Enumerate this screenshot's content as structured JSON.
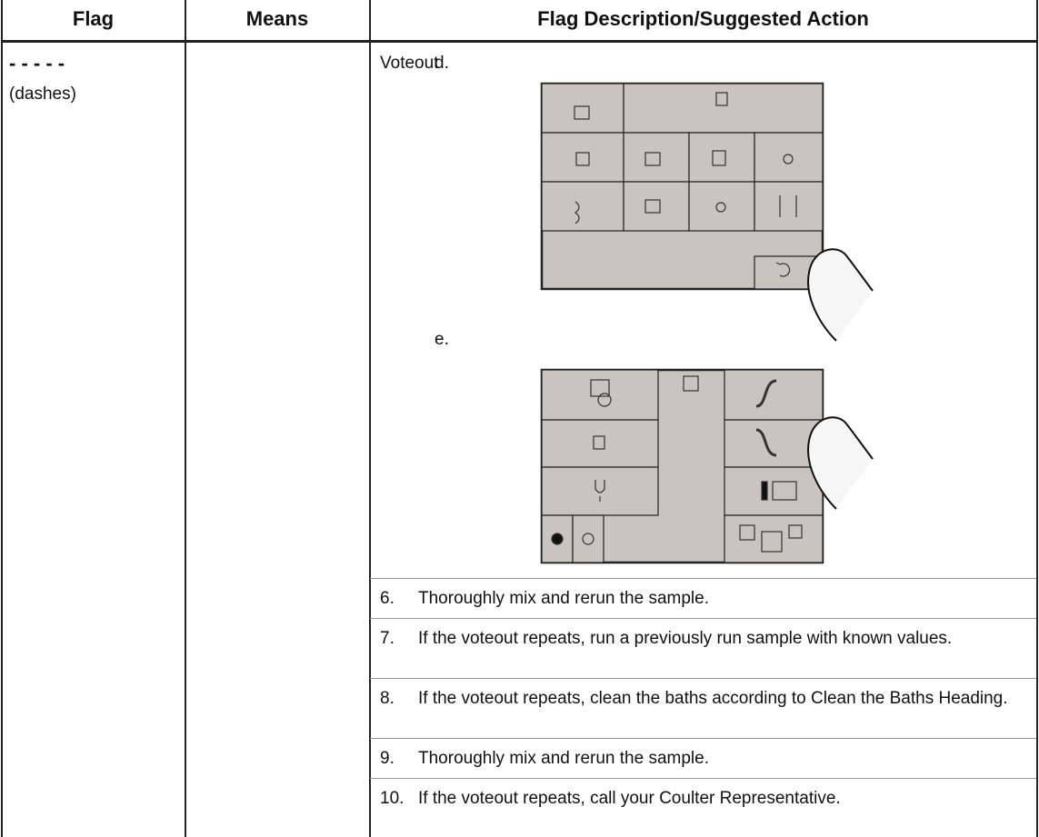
{
  "header": {
    "columns": [
      "Flag",
      "Means",
      "Flag Description/Suggested Action"
    ]
  },
  "row": {
    "flag": "- - - - -",
    "flag_note": "(dashes)",
    "means": "Voteout",
    "substeps": [
      {
        "label": "d."
      },
      {
        "label": "e."
      }
    ],
    "steps": [
      {
        "number": "6.",
        "text": "Thoroughly mix and rerun the sample."
      },
      {
        "number": "7.",
        "text": "If the voteout repeats, run a previously run sample with known values."
      },
      {
        "number": "8.",
        "text": "If the voteout repeats, clean the baths according to Clean the Baths Heading."
      },
      {
        "number": "9.",
        "text": "Thoroughly mix and rerun the sample."
      },
      {
        "number": "10.",
        "text": "If the voteout repeats, call your Coulter Representative."
      }
    ]
  }
}
